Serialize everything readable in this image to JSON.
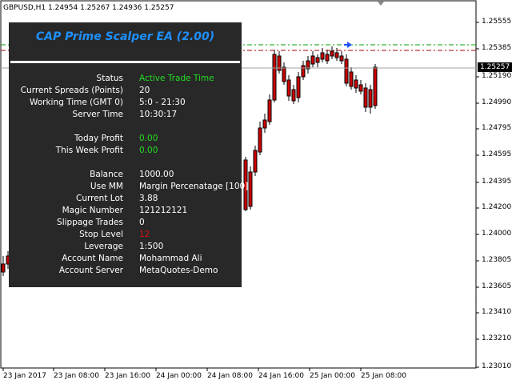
{
  "chart": {
    "symbol_line": "GBPUSD,H1  1.24954 1.25267 1.24936 1.25257",
    "current_price": "1.25257",
    "y_ticks": [
      "1.25555",
      "1.25385",
      "1.25190",
      "1.24990",
      "1.24795",
      "1.24595",
      "1.24395",
      "1.24200",
      "1.24000",
      "1.23805",
      "1.23605",
      "1.23410",
      "1.23210",
      "1.23010"
    ],
    "x_ticks": [
      "23 Jan 2017",
      "23 Jan 08:00",
      "23 Jan 16:00",
      "24 Jan 00:00",
      "24 Jan 08:00",
      "24 Jan 16:00",
      "25 Jan 00:00",
      "25 Jan 08:00"
    ],
    "colors": {
      "bull_candle": "#ffffff",
      "bear_candle": "#cc0000",
      "green_level": "#00a000",
      "red_level": "#a00000",
      "bid_line": "#a0a0a0"
    }
  },
  "panel": {
    "title": "CAP Prime Scalper EA (2.00)",
    "title_color": "#1e90ff",
    "rows": [
      {
        "label": "Status",
        "value": "Active Trade Time",
        "color": "green"
      },
      {
        "label": "Current Spreads (Points)",
        "value": "20"
      },
      {
        "label": "Working Time (GMT 0)",
        "value": "5:0 - 21:30"
      },
      {
        "label": "Server Time",
        "value": "10:30:17"
      },
      {
        "label": "Today Profit",
        "value": "0.00",
        "color": "green"
      },
      {
        "label": "This Week Profit",
        "value": "0.00",
        "color": "green"
      },
      {
        "label": "Balance",
        "value": "1000.00"
      },
      {
        "label": "Use MM",
        "value": "Margin Percenatage [100]"
      },
      {
        "label": "Current Lot",
        "value": "3.88"
      },
      {
        "label": "Magic Number",
        "value": "121212121"
      },
      {
        "label": "Slippage Trades",
        "value": "0"
      },
      {
        "label": "Stop Level",
        "value": "12",
        "color": "red"
      },
      {
        "label": "Leverage",
        "value": "1:500"
      },
      {
        "label": "Account Name",
        "value": "Mohammad Ali"
      },
      {
        "label": "Account Server",
        "value": "MetaQuotes-Demo"
      }
    ]
  }
}
